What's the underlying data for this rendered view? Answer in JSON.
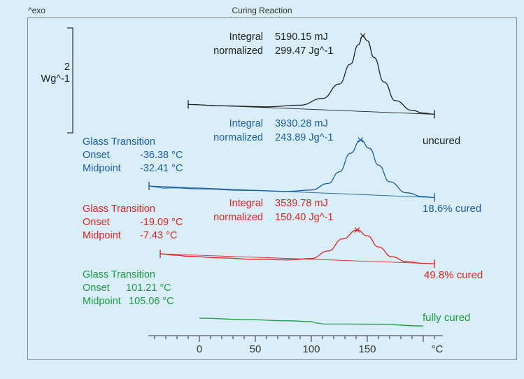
{
  "header": {
    "exo_label": "^exo",
    "title": "Curing Reaction"
  },
  "scale_bar": {
    "value": "2",
    "unit": "Wg^-1"
  },
  "chart_data": {
    "type": "line",
    "title": "Curing Reaction",
    "xlabel": "°C",
    "x_ticks": [
      "0",
      "50",
      "100",
      "150"
    ],
    "xlim": [
      -45,
      210
    ],
    "series": [
      {
        "name": "uncured",
        "color": "#222222",
        "integral": "5190.15 mJ",
        "normalized": "299.47 Jg^-1",
        "peak_x": 146,
        "curve_x": [
          -10,
          20,
          60,
          90,
          110,
          125,
          135,
          142,
          146,
          150,
          156,
          165,
          175,
          190,
          200,
          210
        ],
        "curve_y": [
          0.0,
          0.0,
          0.01,
          0.05,
          0.15,
          0.35,
          0.62,
          0.88,
          1.0,
          0.94,
          0.72,
          0.4,
          0.16,
          0.04,
          0.01,
          0.0
        ]
      },
      {
        "name": "18.6% cured",
        "color": "#1a5ea8",
        "integral": "3930.28 mJ",
        "normalized": "243.89 Jg^-1",
        "glass_transition": {
          "heading": "Glass Transition",
          "onset": "-36.38 °C",
          "midpoint": "-32.41 °C"
        },
        "peak_x": 144,
        "curve_x": [
          -45,
          -40,
          -36,
          -32,
          -25,
          0,
          40,
          80,
          100,
          115,
          125,
          135,
          144,
          152,
          160,
          170,
          185,
          200,
          210
        ],
        "curve_y": [
          0.02,
          0.01,
          0.0,
          -0.01,
          0.0,
          0.0,
          0.0,
          0.01,
          0.05,
          0.18,
          0.4,
          0.75,
          1.0,
          0.85,
          0.55,
          0.25,
          0.06,
          0.0,
          -0.01
        ]
      },
      {
        "name": "49.8% cured",
        "color": "#e0231d",
        "integral": "3539.78 mJ",
        "normalized": "150.40 Jg^-1",
        "glass_transition": {
          "heading": "Glass Transition",
          "onset": "-19.09 °C",
          "midpoint": "-7.43 °C"
        },
        "peak_x": 141,
        "curve_x": [
          -35,
          -20,
          -10,
          20,
          50,
          80,
          100,
          115,
          128,
          141,
          150,
          160,
          172,
          185,
          200,
          210
        ],
        "curve_y": [
          0.05,
          0.02,
          0.0,
          -0.02,
          -0.03,
          -0.02,
          0.05,
          0.3,
          0.7,
          1.0,
          0.82,
          0.48,
          0.18,
          0.04,
          0.0,
          0.0
        ]
      },
      {
        "name": "fully cured",
        "color": "#1a9c3c",
        "glass_transition": {
          "heading": "Glass Transition",
          "onset": "101.21 °C",
          "midpoint": "105.06 °C"
        },
        "curve_x": [
          0,
          40,
          80,
          100,
          105,
          112,
          130,
          160,
          200
        ],
        "curve_y": [
          0.0,
          -0.01,
          -0.02,
          -0.03,
          -0.06,
          -0.08,
          -0.07,
          -0.06,
          -0.08
        ]
      }
    ]
  }
}
